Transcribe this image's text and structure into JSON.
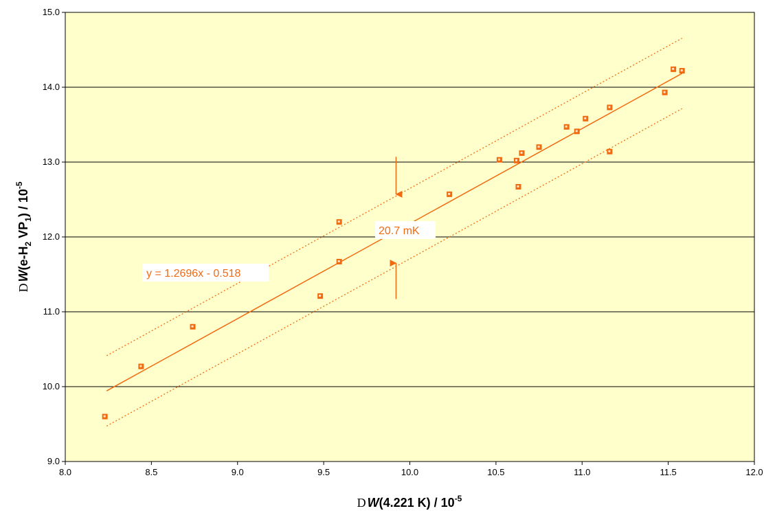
{
  "colors": {
    "plot_background": "#ffffcc",
    "gridline": "#000000",
    "series": "#f26a10"
  },
  "chart_data": {
    "type": "scatter",
    "title": "",
    "xlabel": {
      "delta": "D",
      "symbol": "W",
      "rest": "(4.221 K) / 10",
      "exp": "-5"
    },
    "ylabel": {
      "delta": "D",
      "symbol": "W",
      "part1": "(e-H",
      "sub1": "2",
      "part2": " VP",
      "sub2": "1",
      "part3": ") / 10",
      "exp": "-5"
    },
    "xlim": [
      8.0,
      12.0
    ],
    "ylim": [
      9.0,
      15.0
    ],
    "x_ticks": [
      8.0,
      8.5,
      9.0,
      9.5,
      10.0,
      10.5,
      11.0,
      11.5,
      12.0
    ],
    "y_ticks": [
      9.0,
      10.0,
      11.0,
      12.0,
      13.0,
      14.0,
      15.0
    ],
    "x_tick_labels": [
      "8.0",
      "8.5",
      "9.0",
      "9.5",
      "10.0",
      "10.5",
      "11.0",
      "11.5",
      "12.0"
    ],
    "y_tick_labels": [
      "9.0",
      "10.0",
      "11.0",
      "12.0",
      "13.0",
      "14.0",
      "15.0"
    ],
    "grid": {
      "horizontal": true,
      "vertical": false
    },
    "legend": "none",
    "marker": "square",
    "points": [
      [
        8.23,
        9.6
      ],
      [
        8.44,
        10.27
      ],
      [
        8.74,
        10.8
      ],
      [
        9.48,
        11.21
      ],
      [
        9.59,
        11.67
      ],
      [
        9.59,
        12.2
      ],
      [
        10.23,
        12.57
      ],
      [
        10.52,
        13.03
      ],
      [
        10.62,
        13.02
      ],
      [
        10.63,
        12.67
      ],
      [
        10.65,
        13.12
      ],
      [
        10.75,
        13.2
      ],
      [
        10.91,
        13.47
      ],
      [
        10.97,
        13.41
      ],
      [
        11.02,
        13.58
      ],
      [
        11.16,
        13.14
      ],
      [
        11.16,
        13.73
      ],
      [
        11.48,
        13.93
      ],
      [
        11.53,
        14.24
      ],
      [
        11.58,
        14.22
      ]
    ],
    "fit": {
      "slope": 1.2696,
      "intercept": -0.518,
      "x_range": [
        8.24,
        11.58
      ],
      "style": "solid"
    },
    "bands": [
      {
        "offset": 0.47,
        "x_range": [
          8.24,
          11.58
        ],
        "style": "dotted"
      },
      {
        "offset": -0.47,
        "x_range": [
          8.24,
          11.58
        ],
        "style": "dotted"
      }
    ],
    "annotations": {
      "equation": "y = 1.2696x - 0.518",
      "band_width": "20.7 mK"
    },
    "arrows": [
      {
        "x": 9.92,
        "y_from": 13.07,
        "y_to": 12.57
      },
      {
        "x": 9.92,
        "y_from": 11.17,
        "y_to": 11.65
      }
    ]
  }
}
